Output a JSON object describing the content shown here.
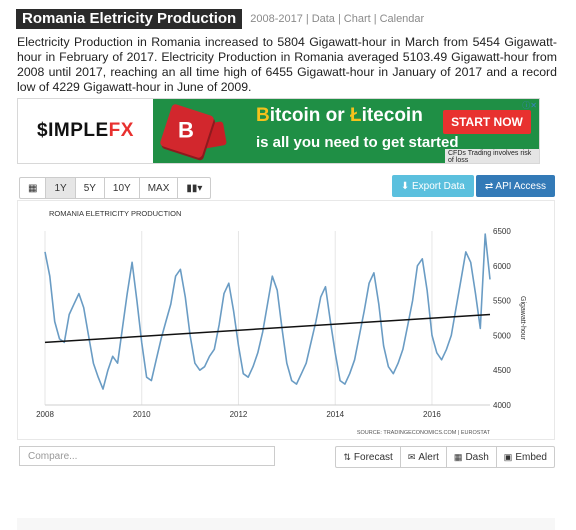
{
  "header": {
    "title": "Romania Eletricity Production",
    "range": "2008-2017",
    "links": [
      "Data",
      "Chart",
      "Calendar"
    ]
  },
  "description": "Electricity Production in Romania increased to 5804 Gigawatt-hour in March from 5454 Gigawatt-hour in February of 2017. Electricity Production in Romania averaged 5103.49 Gigawatt-hour from 2008 until 2017, reaching an all time high of 6455 Gigawatt-hour in January of 2017 and a record low of 4229 Gigawatt-hour in June of 2009.",
  "ad": {
    "brand_a": "$IMPLE",
    "brand_b": "FX",
    "cube_letter": "B",
    "headline_a": "itcoin or ",
    "headline_b": "itecoin",
    "coin_b": "B",
    "coin_l": "Ł",
    "subline": "is all you need to get started",
    "cta": "START NOW",
    "note": "CFDs Trading involves risk of loss",
    "info": "ⓘ✕"
  },
  "toolbar": {
    "calendar_icon": "▦",
    "ranges": [
      "1Y",
      "5Y",
      "10Y",
      "MAX"
    ],
    "chart_type_icon": "▮▮▾",
    "export_label": "⬇ Export Data",
    "api_label": "⇄ API Access"
  },
  "chart_data": {
    "type": "line",
    "title": "ROMANIA ELETRICITY PRODUCTION",
    "ylabel": "Gigawatt-hour",
    "source": "SOURCE: TRADINGECONOMICS.COM | EUROSTAT",
    "xlim": [
      2008.0,
      2017.2
    ],
    "ylim": [
      4000,
      6500
    ],
    "xticks": [
      2008,
      2010,
      2012,
      2014,
      2016
    ],
    "yticks": [
      4000,
      4500,
      5000,
      5500,
      6000,
      6500
    ],
    "grid": "vertical",
    "series": [
      {
        "color": "#6a9cc4",
        "x": [
          2008.0,
          2008.1,
          2008.2,
          2008.3,
          2008.4,
          2008.5,
          2008.6,
          2008.7,
          2008.8,
          2008.9,
          2009.0,
          2009.1,
          2009.2,
          2009.3,
          2009.4,
          2009.5,
          2009.6,
          2009.7,
          2009.8,
          2009.9,
          2010.0,
          2010.1,
          2010.2,
          2010.3,
          2010.4,
          2010.5,
          2010.6,
          2010.7,
          2010.8,
          2010.9,
          2011.0,
          2011.1,
          2011.2,
          2011.3,
          2011.4,
          2011.5,
          2011.6,
          2011.7,
          2011.8,
          2011.9,
          2012.0,
          2012.1,
          2012.2,
          2012.3,
          2012.4,
          2012.5,
          2012.6,
          2012.7,
          2012.8,
          2012.9,
          2013.0,
          2013.1,
          2013.2,
          2013.3,
          2013.4,
          2013.5,
          2013.6,
          2013.7,
          2013.8,
          2013.9,
          2014.0,
          2014.1,
          2014.2,
          2014.3,
          2014.4,
          2014.5,
          2014.6,
          2014.7,
          2014.8,
          2014.9,
          2015.0,
          2015.1,
          2015.2,
          2015.3,
          2015.4,
          2015.5,
          2015.6,
          2015.7,
          2015.8,
          2015.9,
          2016.0,
          2016.1,
          2016.2,
          2016.3,
          2016.4,
          2016.5,
          2016.6,
          2016.7,
          2016.8,
          2016.9,
          2017.0,
          2017.1,
          2017.2
        ],
        "y": [
          6200,
          5850,
          5200,
          4950,
          4900,
          5300,
          5450,
          5600,
          5400,
          5000,
          4600,
          4400,
          4229,
          4500,
          4700,
          4600,
          5100,
          5600,
          6050,
          5500,
          4900,
          4400,
          4350,
          4650,
          4950,
          5200,
          5450,
          5850,
          5950,
          5550,
          5000,
          4600,
          4500,
          4550,
          4700,
          4800,
          5150,
          5600,
          5750,
          5350,
          4850,
          4450,
          4400,
          4550,
          4750,
          5050,
          5450,
          5850,
          5650,
          5100,
          4600,
          4350,
          4300,
          4450,
          4600,
          4900,
          5200,
          5550,
          5700,
          5200,
          4750,
          4350,
          4300,
          4450,
          4650,
          5000,
          5350,
          5750,
          5900,
          5450,
          4850,
          4550,
          4450,
          4600,
          4800,
          5150,
          5500,
          6000,
          6100,
          5650,
          5000,
          4750,
          4650,
          4800,
          5000,
          5400,
          5800,
          6200,
          6050,
          5600,
          5100,
          6455,
          5804
        ]
      },
      {
        "color": "#111111",
        "x": [
          2008.0,
          2017.2
        ],
        "y": [
          4900,
          5300
        ]
      }
    ]
  },
  "bottom": {
    "compare_placeholder": "Compare...",
    "forecast": "Forecast",
    "alert": "Alert",
    "dash": "Dash",
    "embed": "Embed",
    "forecast_icon": "⇅",
    "alert_icon": "✉",
    "dash_icon": "▦",
    "embed_icon": "▣"
  }
}
